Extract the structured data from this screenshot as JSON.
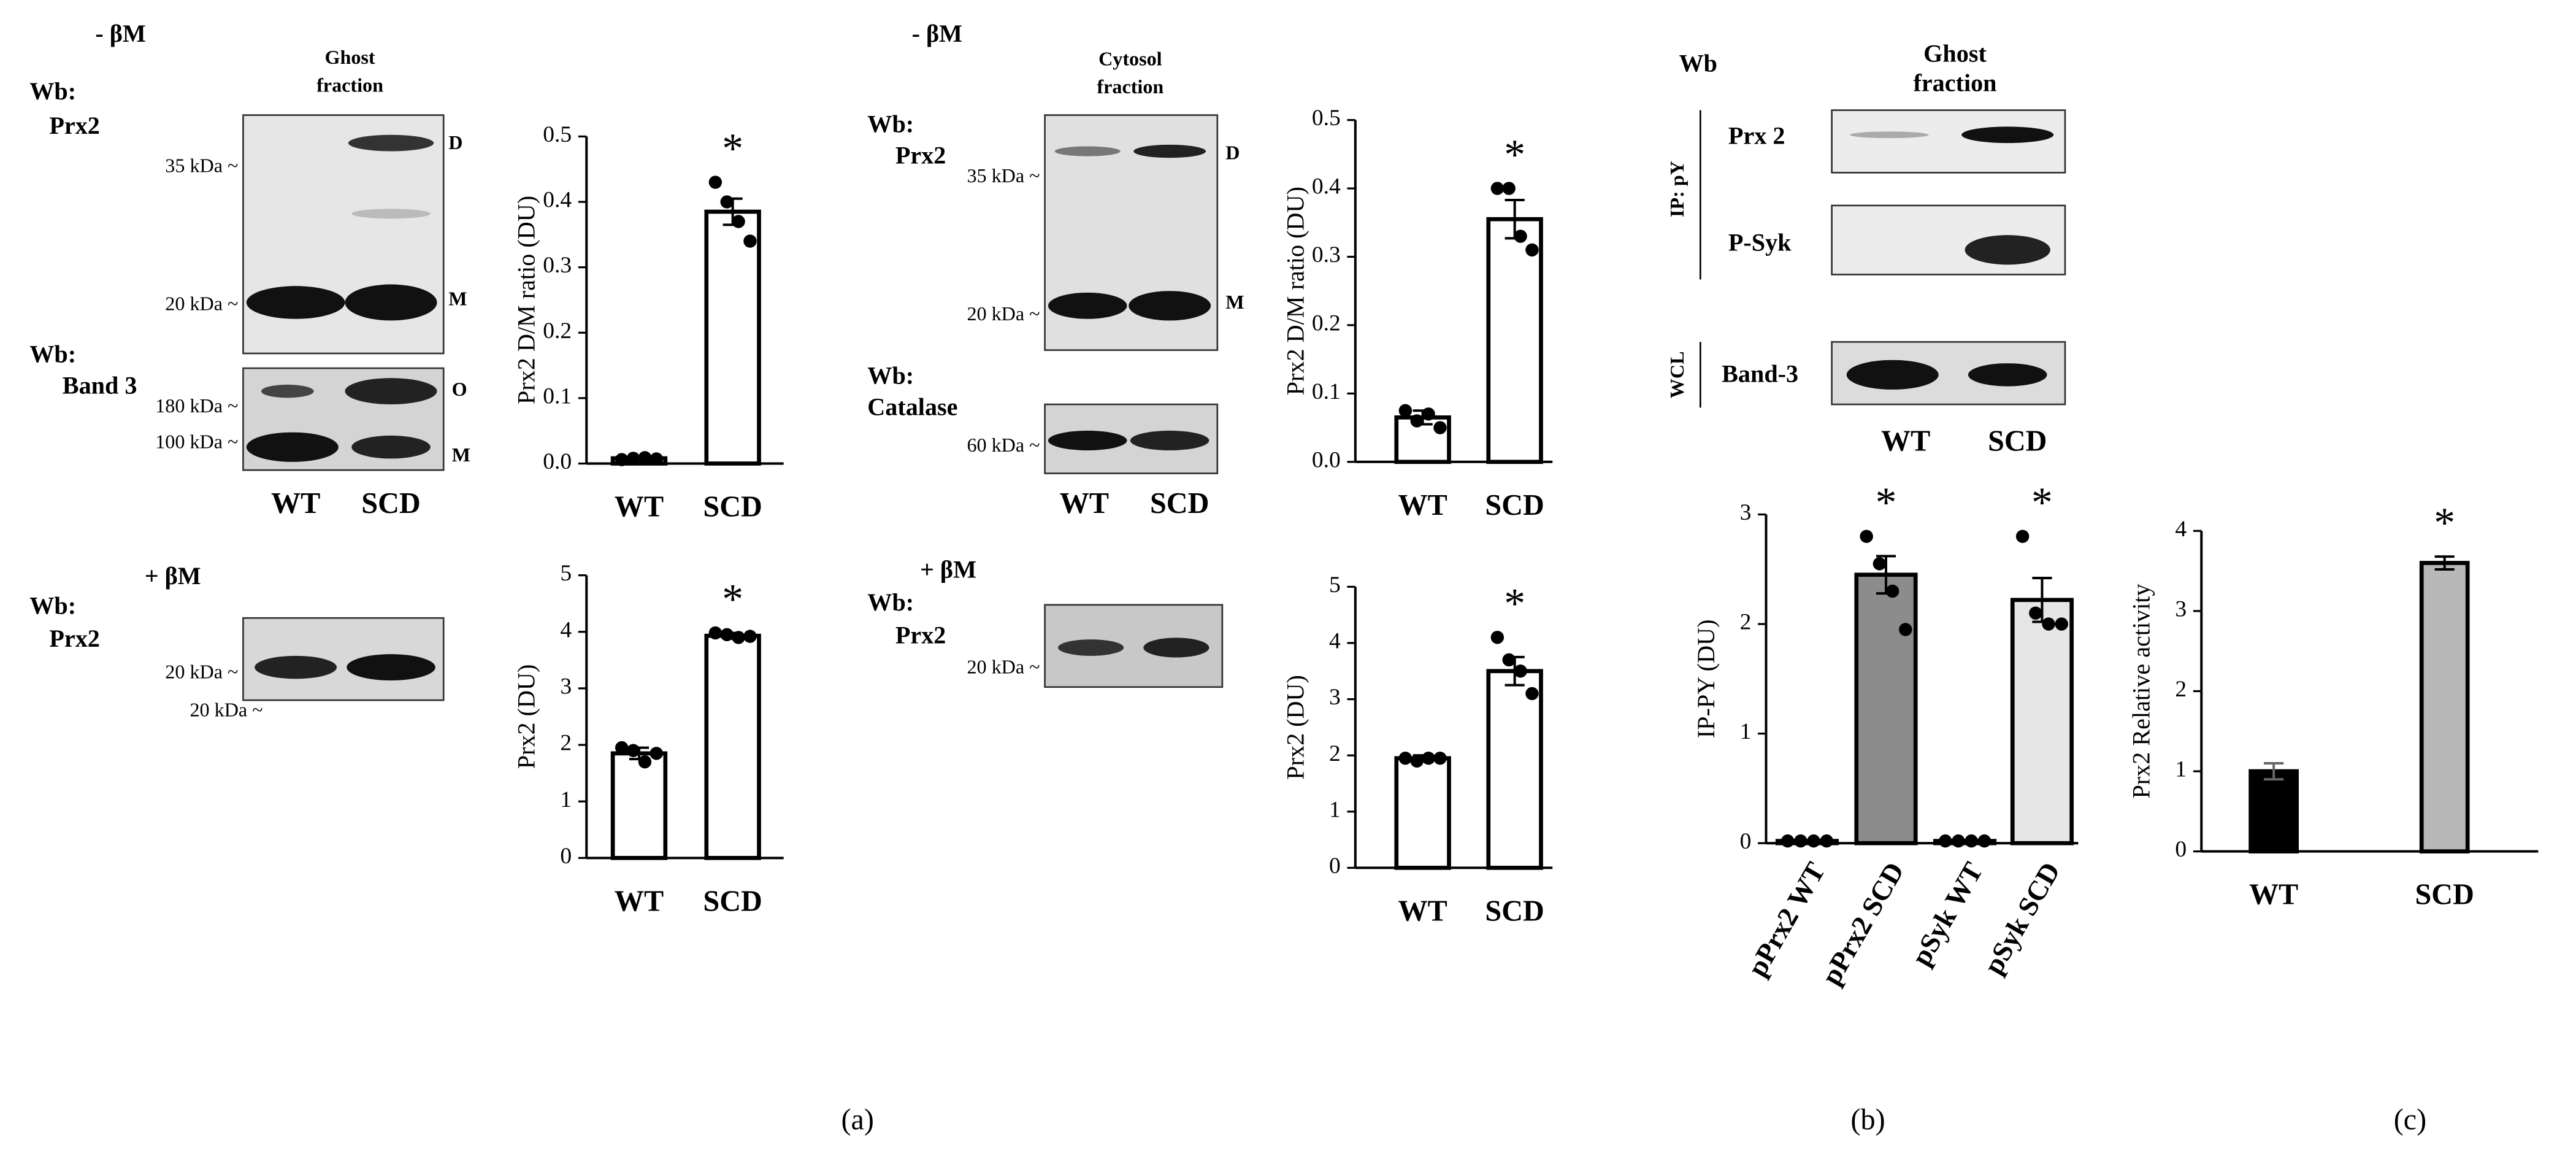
{
  "labels": [
    "- βM",
    "Ghost",
    "fraction",
    "Wb:",
    "Prx2",
    "35 kDa ~",
    "20 kDa ~",
    "D",
    "M",
    "Wb:",
    "Band 3",
    "180 kDa ~",
    "100 kDa ~",
    "O",
    "M",
    "WT",
    "SCD",
    "+ βM",
    "Wb:",
    "Prx2",
    "20 kDa ~",
    "20 kDa ~",
    "- βM",
    "Cytosol",
    "fraction",
    "Wb:",
    "Prx2",
    "35 kDa ~",
    "D",
    "20 kDa ~",
    "M",
    "Wb:",
    "Catalase",
    "60 kDa ~",
    "WT",
    "SCD",
    "+ βM",
    "Wb:",
    "Prx2",
    "20 kDa ~",
    "Wb",
    "Ghost",
    "fraction",
    "IP: pY",
    "Prx 2",
    "P-Syk",
    "WCL",
    "Band-3",
    "WT",
    "SCD",
    "(a)",
    "(b)",
    "(c)"
  ],
  "chart_data": [
    {
      "type": "bar",
      "ylabel": "Prx2 D/M ratio (DU)",
      "categories": [
        "WT",
        "SCD"
      ],
      "values": [
        0.008,
        0.385
      ],
      "errors": [
        0.002,
        0.02
      ],
      "points": [
        [
          0.006,
          0.008,
          0.009,
          0.007
        ],
        [
          0.43,
          0.4,
          0.37,
          0.34
        ]
      ],
      "colors": [
        "#ffffff",
        "#ffffff"
      ],
      "ylim": [
        0,
        0.5
      ],
      "yticks": [
        {
          "value": 0,
          "label": "0.0"
        },
        0.1,
        0.2,
        0.3,
        0.4,
        0.5
      ],
      "annotations": [
        {
          "text": "*",
          "index": 1
        }
      ]
    },
    {
      "type": "bar",
      "ylabel": "Prx2 (DU)",
      "categories": [
        "WT",
        "SCD"
      ],
      "values": [
        1.85,
        3.93
      ],
      "errors": [
        0.1,
        0.05
      ],
      "points": [
        [
          1.95,
          1.9,
          1.7,
          1.85
        ],
        [
          3.98,
          3.95,
          3.9,
          3.92
        ]
      ],
      "colors": [
        "#ffffff",
        "#ffffff"
      ],
      "ylim": [
        0,
        5
      ],
      "yticks": [
        0,
        1,
        2,
        3,
        4,
        5
      ],
      "annotations": [
        {
          "text": "*",
          "index": 1
        }
      ]
    },
    {
      "type": "bar",
      "ylabel": "Prx2 D/M ratio (DU)",
      "categories": [
        "WT",
        "SCD"
      ],
      "values": [
        0.065,
        0.355
      ],
      "errors": [
        0.01,
        0.028
      ],
      "points": [
        [
          0.075,
          0.06,
          0.07,
          0.05
        ],
        [
          0.4,
          0.4,
          0.33,
          0.31
        ]
      ],
      "colors": [
        "#ffffff",
        "#ffffff"
      ],
      "ylim": [
        0,
        0.5
      ],
      "yticks": [
        {
          "value": 0,
          "label": "0.0"
        },
        0.1,
        0.2,
        0.3,
        0.4,
        0.5
      ],
      "annotations": [
        {
          "text": "*",
          "index": 1
        }
      ]
    },
    {
      "type": "bar",
      "ylabel": "Prx2 (DU)",
      "categories": [
        "WT",
        "SCD"
      ],
      "values": [
        1.95,
        3.5
      ],
      "errors": [
        0.05,
        0.25
      ],
      "points": [
        [
          1.95,
          1.9,
          1.95,
          1.95
        ],
        [
          4.1,
          3.7,
          3.5,
          3.1
        ]
      ],
      "colors": [
        "#ffffff",
        "#ffffff"
      ],
      "ylim": [
        0,
        5
      ],
      "yticks": [
        0,
        1,
        2,
        3,
        4,
        5
      ],
      "annotations": [
        {
          "text": "*",
          "index": 1
        }
      ]
    },
    {
      "type": "bar",
      "ylabel": "IP-PY (DU)",
      "categories": [
        "pPrx2 WT",
        "pPrx2 SCD",
        "pSyk WT",
        "pSyk SCD"
      ],
      "values": [
        0.02,
        2.45,
        0.02,
        2.22
      ],
      "errors": [
        0.005,
        0.17,
        0.005,
        0.2
      ],
      "points": [
        [
          0.02,
          0.02,
          0.02,
          0.02
        ],
        [
          2.8,
          2.55,
          2.3,
          1.95
        ],
        [
          0.02,
          0.02,
          0.02,
          0.02
        ],
        [
          2.8,
          2.1,
          2.0,
          2.0
        ]
      ],
      "colors": [
        "#ffffff",
        "#8c8c8c",
        "#ffffff",
        "#e6e6e6"
      ],
      "ylim": [
        0,
        3
      ],
      "yticks": [
        0,
        1,
        2,
        3
      ],
      "annotations": [
        {
          "text": "*",
          "index": 1
        },
        {
          "text": "*",
          "index": 3
        }
      ]
    },
    {
      "type": "bar",
      "ylabel": "Prx2 Relative activity",
      "categories": [
        "WT",
        "SCD"
      ],
      "values": [
        1.0,
        3.6
      ],
      "errors": [
        0.1,
        0.08
      ],
      "colors": [
        "#000000",
        "#b8b8b8"
      ],
      "ylim": [
        0,
        4
      ],
      "yticks": [
        0,
        1,
        2,
        3,
        4
      ],
      "annotations": [
        {
          "text": "*",
          "index": 1
        }
      ]
    }
  ]
}
